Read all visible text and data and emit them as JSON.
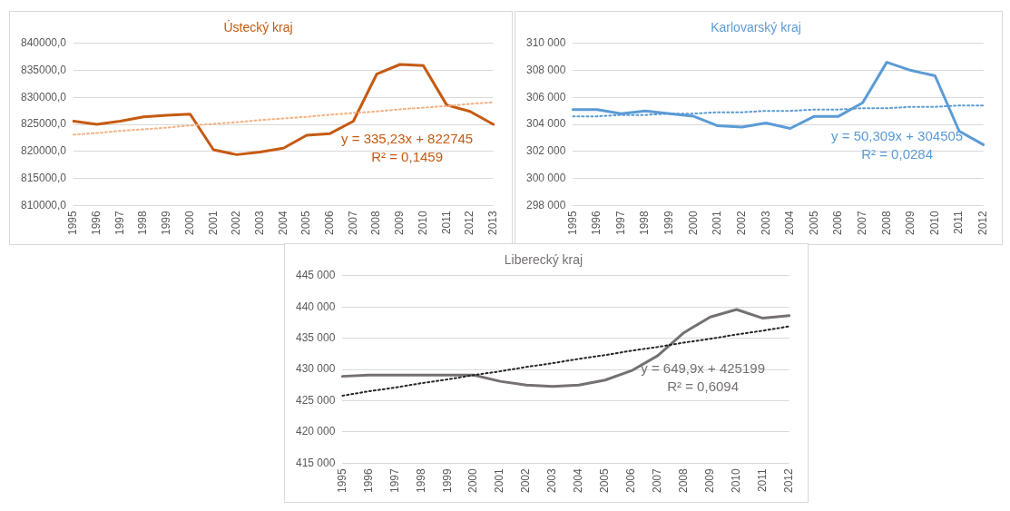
{
  "chart_data": [
    {
      "type": "line",
      "title": "Ústecký kraj",
      "categories": [
        "1995",
        "1996",
        "1997",
        "1998",
        "1999",
        "2000",
        "2001",
        "2002",
        "2003",
        "2004",
        "2005",
        "2006",
        "2007",
        "2008",
        "2009",
        "2010",
        "2011",
        "2012",
        "2013"
      ],
      "series": [
        {
          "color": "#c55a11",
          "values": [
            825600,
            825000,
            825600,
            826400,
            826700,
            826900,
            820300,
            819400,
            819900,
            820600,
            823000,
            823300,
            825600,
            834300,
            836100,
            835900,
            828600,
            827400,
            825000
          ]
        },
        {
          "type": "line",
          "color": "#f4b183",
          "line_style": "dotted",
          "values": [
            823100,
            823400,
            823800,
            824100,
            824400,
            824800,
            825100,
            825400,
            825800,
            826100,
            826400,
            826800,
            827100,
            827400,
            827800,
            828100,
            828400,
            828800,
            829100
          ]
        }
      ],
      "ylim": [
        810000,
        840000
      ],
      "yticks": [
        {
          "value": 810000,
          "label": "810000,0"
        },
        {
          "value": 815000,
          "label": "815000,0"
        },
        {
          "value": 820000,
          "label": "820000,0"
        },
        {
          "value": 825000,
          "label": "825000,0"
        },
        {
          "value": 830000,
          "label": "830000,0"
        },
        {
          "value": 835000,
          "label": "835000,0"
        },
        {
          "value": 840000,
          "label": "840000,0"
        }
      ],
      "annotations": [
        "y = 335,23x + 822745",
        "R² = 0,1459"
      ],
      "grid": "y",
      "legend": false,
      "marker": "none",
      "line_style": "solid"
    },
    {
      "type": "line",
      "title": "Karlovarský kraj",
      "categories": [
        "1995",
        "1996",
        "1997",
        "1998",
        "1999",
        "2000",
        "2001",
        "2002",
        "2003",
        "2004",
        "2005",
        "2006",
        "2007",
        "2008",
        "2009",
        "2010",
        "2011",
        "2012"
      ],
      "series": [
        {
          "color": "#5b9bd5",
          "values": [
            305100,
            305100,
            304800,
            305000,
            304800,
            304600,
            303900,
            303800,
            304100,
            303700,
            304600,
            304600,
            305600,
            308600,
            308000,
            307600,
            303500,
            302500
          ]
        },
        {
          "type": "line",
          "color": "#5b9bd5",
          "line_style": "dotted",
          "values": [
            304600,
            304600,
            304700,
            304700,
            304800,
            304800,
            304900,
            304900,
            305000,
            305000,
            305100,
            305100,
            305200,
            305200,
            305300,
            305300,
            305400,
            305400
          ]
        }
      ],
      "ylim": [
        298000,
        310000
      ],
      "yticks": [
        {
          "value": 298000,
          "label": "298 000"
        },
        {
          "value": 300000,
          "label": "300 000"
        },
        {
          "value": 302000,
          "label": "302 000"
        },
        {
          "value": 304000,
          "label": "304 000"
        },
        {
          "value": 306000,
          "label": "306 000"
        },
        {
          "value": 308000,
          "label": "308 000"
        },
        {
          "value": 310000,
          "label": "310 000"
        }
      ],
      "annotations": [
        "y = 50,309x + 304505",
        "R² = 0,0284"
      ],
      "grid": "y",
      "legend": false,
      "marker": "none",
      "line_style": "solid"
    },
    {
      "type": "line",
      "title": "Liberecký kraj",
      "categories": [
        "1995",
        "1996",
        "1997",
        "1998",
        "1999",
        "2000",
        "2001",
        "2002",
        "2003",
        "2004",
        "2005",
        "2006",
        "2007",
        "2008",
        "2009",
        "2010",
        "2011",
        "2012"
      ],
      "series": [
        {
          "color": "#767171",
          "values": [
            428900,
            429100,
            429100,
            429100,
            429100,
            429100,
            428100,
            427500,
            427300,
            427500,
            428300,
            429800,
            432200,
            435900,
            438400,
            439600,
            438200,
            438600
          ]
        },
        {
          "type": "line",
          "color": "#262626",
          "line_style": "dotted",
          "values": [
            425800,
            426500,
            427100,
            427800,
            428400,
            429100,
            429700,
            430400,
            431000,
            431700,
            432300,
            433000,
            433600,
            434300,
            434900,
            435600,
            436200,
            436900
          ]
        }
      ],
      "ylim": [
        415000,
        445000
      ],
      "yticks": [
        {
          "value": 415000,
          "label": "415 000"
        },
        {
          "value": 420000,
          "label": "420 000"
        },
        {
          "value": 425000,
          "label": "425 000"
        },
        {
          "value": 430000,
          "label": "430 000"
        },
        {
          "value": 435000,
          "label": "435 000"
        },
        {
          "value": 440000,
          "label": "440 000"
        },
        {
          "value": 445000,
          "label": "445 000"
        }
      ],
      "annotations": [
        "y = 649,9x + 425199",
        "R² = 0,6094"
      ],
      "grid": "y",
      "legend": false,
      "marker": "none",
      "line_style": "solid"
    }
  ]
}
